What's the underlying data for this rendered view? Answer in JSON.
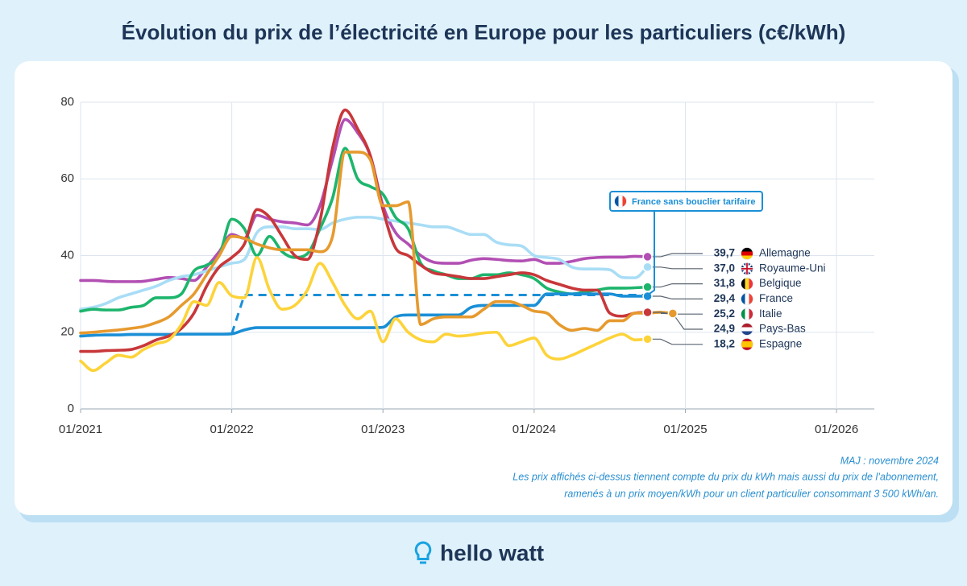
{
  "chart_data": {
    "type": "line",
    "title": "Évolution du prix de l’électricité en Europe pour les particuliers (c€/kWh)",
    "x": [
      "01/2021",
      "02/2021",
      "03/2021",
      "04/2021",
      "05/2021",
      "06/2021",
      "07/2021",
      "08/2021",
      "09/2021",
      "10/2021",
      "11/2021",
      "12/2021",
      "01/2022",
      "02/2022",
      "03/2022",
      "04/2022",
      "05/2022",
      "06/2022",
      "07/2022",
      "08/2022",
      "09/2022",
      "10/2022",
      "11/2022",
      "12/2022",
      "01/2023",
      "02/2023",
      "03/2023",
      "04/2023",
      "05/2023",
      "06/2023",
      "07/2023",
      "08/2023",
      "09/2023",
      "10/2023",
      "11/2023",
      "12/2023",
      "01/2024",
      "02/2024",
      "03/2024",
      "04/2024",
      "05/2024",
      "06/2024",
      "07/2024",
      "08/2024",
      "09/2024",
      "10/2024",
      "11/2024",
      "12/2024"
    ],
    "xlim": [
      "01/2021",
      "04/2026"
    ],
    "xticks": [
      "01/2021",
      "01/2022",
      "01/2023",
      "01/2024",
      "01/2025",
      "01/2026"
    ],
    "ylim": [
      0,
      80
    ],
    "yticks": [
      0,
      20,
      40,
      60,
      80
    ],
    "grid": true,
    "series": [
      {
        "name": "Allemagne",
        "color": "#b24fb3",
        "values": [
          33.5,
          33.5,
          33.3,
          33.2,
          33.2,
          33.3,
          33.8,
          34.3,
          34,
          33.5,
          37,
          41,
          45.5,
          44.5,
          50.5,
          49.5,
          48.8,
          48.5,
          48,
          53,
          65,
          75.5,
          72,
          66,
          53,
          46,
          43,
          40,
          38.3,
          38,
          38,
          38.8,
          39.2,
          39,
          38.7,
          38.6,
          39,
          38,
          38,
          38.5,
          39.2,
          39.5,
          39.6,
          39.6,
          39.8,
          39.7,
          null,
          null
        ],
        "value_labels": [
          null,
          null,
          null,
          null,
          null,
          null,
          null,
          null,
          null,
          null,
          null,
          null,
          null,
          null,
          null,
          null,
          null,
          null,
          null,
          null,
          null,
          null,
          null,
          null,
          null,
          null,
          null,
          null,
          null,
          null,
          null,
          null,
          null,
          null,
          null,
          null,
          null,
          null,
          null,
          null,
          null,
          null,
          null,
          null,
          null,
          "39,7",
          null,
          null
        ]
      },
      {
        "name": "Royaume-Uni",
        "color": "#a9ddf6",
        "values": [
          26,
          26.5,
          27.5,
          29,
          30,
          31,
          32,
          33.5,
          34.5,
          35,
          36,
          37,
          38,
          39,
          46,
          47.5,
          47.5,
          47,
          47,
          46.8,
          48.5,
          49.5,
          50,
          50,
          49.5,
          49,
          48.5,
          48,
          47.5,
          47.5,
          46.5,
          45.5,
          45.5,
          43.5,
          42.8,
          42.5,
          40,
          39.5,
          39,
          37,
          36.5,
          36.5,
          36.3,
          34.3,
          34.2,
          37,
          null,
          null
        ],
        "value_labels": [
          null,
          null,
          null,
          null,
          null,
          null,
          null,
          null,
          null,
          null,
          null,
          null,
          null,
          null,
          null,
          null,
          null,
          null,
          null,
          null,
          null,
          null,
          null,
          null,
          null,
          null,
          null,
          null,
          null,
          null,
          null,
          null,
          null,
          null,
          null,
          null,
          null,
          null,
          null,
          null,
          null,
          null,
          null,
          null,
          null,
          "37,0",
          null,
          null
        ]
      },
      {
        "name": "Belgique",
        "color": "#1db56c",
        "values": [
          25.5,
          26,
          25.8,
          25.8,
          26.5,
          27,
          29,
          29,
          30,
          36,
          37.5,
          40,
          49.5,
          47,
          40,
          45,
          41,
          39.5,
          40.5,
          47,
          55,
          68,
          60,
          58,
          56,
          50,
          47,
          38,
          36,
          35,
          34,
          34,
          35,
          35,
          35.5,
          35,
          34,
          31.5,
          30.5,
          30,
          30.5,
          31,
          31.5,
          31.5,
          31.6,
          31.8,
          null,
          null
        ],
        "value_labels": [
          null,
          null,
          null,
          null,
          null,
          null,
          null,
          null,
          null,
          null,
          null,
          null,
          null,
          null,
          null,
          null,
          null,
          null,
          null,
          null,
          null,
          null,
          null,
          null,
          null,
          null,
          null,
          null,
          null,
          null,
          null,
          null,
          null,
          null,
          null,
          null,
          null,
          null,
          null,
          null,
          null,
          null,
          null,
          null,
          null,
          "31,8",
          null,
          null
        ]
      },
      {
        "name": "France",
        "color": "#1a8fd6",
        "values": [
          19,
          19.2,
          19.3,
          19.3,
          19.4,
          19.4,
          19.4,
          19.4,
          19.5,
          19.5,
          19.5,
          19.5,
          19.6,
          20.6,
          21.2,
          21.2,
          21.2,
          21.2,
          21.2,
          21.2,
          21.2,
          21.2,
          21.2,
          21.2,
          21.3,
          24,
          24.5,
          24.5,
          24.5,
          24.5,
          24.5,
          26.5,
          27,
          27,
          27,
          27,
          27,
          30,
          30,
          30,
          30,
          30,
          30,
          29.4,
          29.4,
          29.4,
          null,
          null
        ],
        "value_labels": [
          null,
          null,
          null,
          null,
          null,
          null,
          null,
          null,
          null,
          null,
          null,
          null,
          null,
          null,
          null,
          null,
          null,
          null,
          null,
          null,
          null,
          null,
          null,
          null,
          null,
          null,
          null,
          null,
          null,
          null,
          null,
          null,
          null,
          null,
          null,
          null,
          null,
          null,
          null,
          null,
          null,
          null,
          null,
          null,
          null,
          "29,4",
          null,
          null
        ]
      },
      {
        "name": "Italie",
        "color": "#c8373a",
        "values": [
          15,
          15,
          15.2,
          15.3,
          15.5,
          16.5,
          18,
          19,
          21,
          25,
          32,
          37,
          39.5,
          43,
          52,
          50,
          45,
          40,
          39,
          49,
          68,
          78,
          73,
          66,
          52,
          42,
          40,
          37.5,
          35.5,
          35,
          34.5,
          34,
          34,
          34.5,
          35,
          35.5,
          35,
          33.5,
          32.5,
          31.5,
          31,
          31,
          25,
          24.2,
          25,
          25.2,
          null,
          null
        ],
        "value_labels": [
          null,
          null,
          null,
          null,
          null,
          null,
          null,
          null,
          null,
          null,
          null,
          null,
          null,
          null,
          null,
          null,
          null,
          null,
          null,
          null,
          null,
          null,
          null,
          null,
          null,
          null,
          null,
          null,
          null,
          null,
          null,
          null,
          null,
          null,
          null,
          null,
          null,
          null,
          null,
          null,
          null,
          null,
          null,
          null,
          null,
          "25,2",
          null,
          null
        ]
      },
      {
        "name": "Pays-Bas",
        "color": "#e69a2e",
        "values": [
          19.8,
          20,
          20.3,
          20.6,
          21,
          21.5,
          22.5,
          24,
          27,
          30,
          35,
          40,
          45,
          44.5,
          43,
          42,
          41.5,
          41.5,
          41.5,
          41,
          45,
          67,
          67,
          65,
          53,
          53,
          54,
          22,
          23.5,
          24,
          24,
          24,
          26,
          28,
          28,
          27,
          25.5,
          25,
          22,
          20.5,
          21,
          20.5,
          23,
          23,
          25,
          25,
          25.2,
          24.9
        ],
        "value_labels": [
          null,
          null,
          null,
          null,
          null,
          null,
          null,
          null,
          null,
          null,
          null,
          null,
          null,
          null,
          null,
          null,
          null,
          null,
          null,
          null,
          null,
          null,
          null,
          null,
          null,
          null,
          null,
          null,
          null,
          null,
          null,
          null,
          null,
          null,
          null,
          null,
          null,
          null,
          null,
          null,
          null,
          null,
          null,
          null,
          null,
          null,
          null,
          "24,9"
        ]
      },
      {
        "name": "Espagne",
        "color": "#fdd33a",
        "values": [
          12.5,
          10,
          12,
          14,
          13.5,
          15.5,
          17,
          18,
          22,
          28,
          27,
          33,
          29.5,
          29,
          39.5,
          31,
          26,
          27,
          31,
          38,
          33,
          27,
          23.5,
          25.5,
          17.5,
          23.5,
          20,
          18,
          17.5,
          19.5,
          19,
          19.3,
          19.8,
          20,
          16.5,
          17.5,
          18.5,
          14,
          13,
          14,
          15.5,
          17,
          18.5,
          19.5,
          18,
          18.2,
          null,
          null
        ],
        "value_labels": [
          null,
          null,
          null,
          null,
          null,
          null,
          null,
          null,
          null,
          null,
          null,
          null,
          null,
          null,
          null,
          null,
          null,
          null,
          null,
          null,
          null,
          null,
          null,
          null,
          null,
          null,
          null,
          null,
          null,
          null,
          null,
          null,
          null,
          null,
          null,
          null,
          null,
          null,
          null,
          null,
          null,
          null,
          null,
          null,
          null,
          "18,2",
          null,
          null
        ]
      },
      {
        "name": "France sans bouclier tarifaire",
        "color": "#1a8fd6",
        "style": "dashed",
        "values": [
          null,
          null,
          null,
          null,
          null,
          null,
          null,
          null,
          null,
          null,
          null,
          null,
          19.6,
          29.7,
          29.7,
          29.7,
          29.7,
          29.7,
          29.7,
          29.7,
          29.7,
          29.7,
          29.7,
          29.7,
          29.7,
          29.7,
          29.7,
          29.7,
          29.7,
          29.7,
          29.7,
          29.7,
          29.7,
          29.7,
          29.7,
          29.7,
          29.7,
          29.7,
          29.7,
          29.7,
          29.7,
          29.7,
          29.7,
          29.7,
          29.7,
          29.7,
          null,
          null
        ]
      }
    ],
    "annotations": [
      "MAJ : novembre 2024",
      "Les prix affichés ci-dessus tiennent compte du prix du kWh mais aussi du prix de l’abonnement,",
      "ramenés à un prix moyen/kWh pour un client particulier consommant 3 500 kWh/an."
    ]
  },
  "brand": "hello watt"
}
